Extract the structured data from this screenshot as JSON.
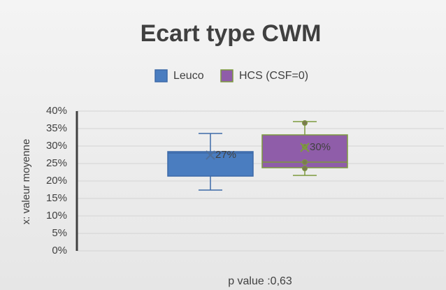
{
  "chart_data": {
    "type": "box",
    "title": "Ecart type CWM",
    "ylabel": "x: valeur moyenne",
    "xlabel": "p value :0,63",
    "ylim": [
      0,
      40
    ],
    "yticks": [
      {
        "value": 0,
        "label": "0%"
      },
      {
        "value": 5,
        "label": "5%"
      },
      {
        "value": 10,
        "label": "10%"
      },
      {
        "value": 15,
        "label": "15%"
      },
      {
        "value": 20,
        "label": "20%"
      },
      {
        "value": 25,
        "label": "25%"
      },
      {
        "value": 30,
        "label": "30%"
      },
      {
        "value": 35,
        "label": "35%"
      },
      {
        "value": 40,
        "label": "40%"
      }
    ],
    "grid": true,
    "series": [
      {
        "name": "Leuco",
        "color": "#4a7dc0",
        "border": "#3d6aa8",
        "whisker_low": 17.4,
        "q1": 21.4,
        "median": 28,
        "q3": 28.4,
        "whisker_high": 33.6,
        "mean": 27.4,
        "mean_label": "27%",
        "points": []
      },
      {
        "name": "HCS (CSF=0)",
        "color": "#8f5da9",
        "border": "#7d9a3e",
        "whisker_low": 21.6,
        "q1": 23.8,
        "median": 25.4,
        "q3": 33.2,
        "whisker_high": 37,
        "mean": 29.6,
        "mean_label": "30%",
        "points": [
          36.6,
          29.8,
          25.4,
          23.6
        ]
      }
    ]
  }
}
